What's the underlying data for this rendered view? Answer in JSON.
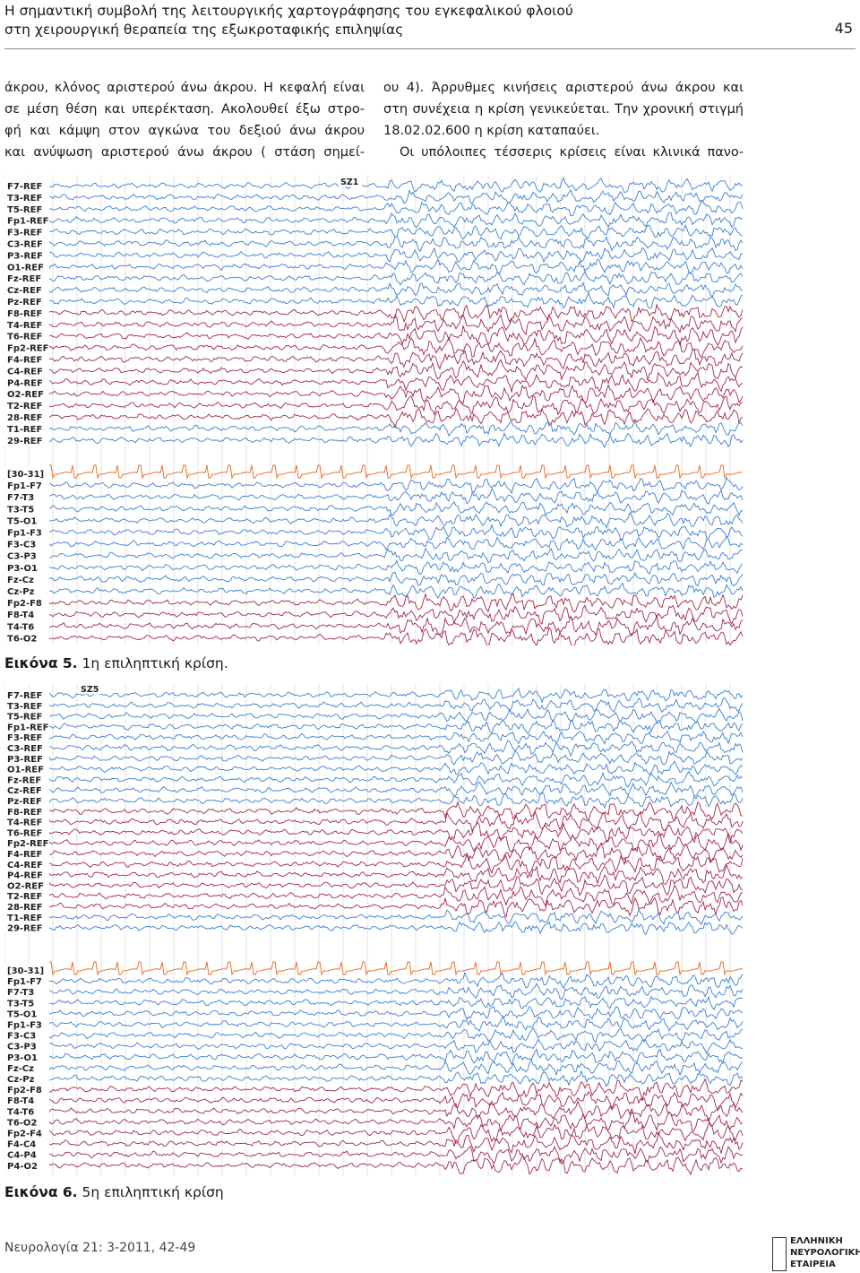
{
  "header": {
    "title_lines": [
      "Η σημαντική συμβολή της λειτουργικής χαρτογράφησης του εγκεφαλικού φλοιού",
      "στη χειρουργική θεραπεία της εξωκροταφικής επιληψίας"
    ],
    "page_number": "45"
  },
  "body": {
    "left_column": [
      "άκρου, κλόνος αριστερού άνω άκρου. Η κεφαλή είναι",
      "σε μέση θέση και υπερέκταση. Ακολουθεί έξω στρο-",
      "φή και κάμψη στον αγκώνα του δεξιού άνω άκρου",
      "και ανύψωση αριστερού άνω άκρου ( στάση σημεί-"
    ],
    "right_column": [
      "ου 4). Άρρυθμες κινήσεις αριστερού άνω άκρου και",
      "στη συνέχεια η κρίση γενικεύεται. Την χρονική στιγμή",
      "18.02.02.600 η κρίση  καταπαύει.",
      "Οι υπόλοιπες τέσσερις κρίσεις είναι κλινικά πανο-"
    ]
  },
  "figures": [
    {
      "marker": "SZ1",
      "channels": [
        "F7-REF",
        "T3-REF",
        "T5-REF",
        "Fp1-REF",
        "F3-REF",
        "C3-REF",
        "P3-REF",
        "O1-REF",
        "Fz-REF",
        "Cz-REF",
        "Pz-REF",
        "F8-REF",
        "T4-REF",
        "T6-REF",
        "Fp2-REF",
        "F4-REF",
        "C4-REF",
        "P4-REF",
        "O2-REF",
        "T2-REF",
        "28-REF",
        "T1-REF",
        "29-REF",
        "[30-31]",
        "Fp1-F7",
        "F7-T3",
        "T3-T5",
        "T5-O1",
        "Fp1-F3",
        "F3-C3",
        "C3-P3",
        "P3-O1",
        "Fz-Cz",
        "Cz-Pz",
        "Fp2-F8",
        "F8-T4",
        "T4-T6",
        "T6-O2"
      ],
      "caption_label": "Εικόνα 5.",
      "caption_text": "1η επιληπτική κρίση."
    },
    {
      "marker": "SZ5",
      "channels": [
        "F7-REF",
        "T3-REF",
        "T5-REF",
        "Fp1-REF",
        "F3-REF",
        "C3-REF",
        "P3-REF",
        "O1-REF",
        "Fz-REF",
        "Cz-REF",
        "Pz-REF",
        "F8-REF",
        "T4-REF",
        "T6-REF",
        "Fp2-REF",
        "F4-REF",
        "C4-REF",
        "P4-REF",
        "O2-REF",
        "T2-REF",
        "28-REF",
        "T1-REF",
        "29-REF",
        "[30-31]",
        "Fp1-F7",
        "F7-T3",
        "T3-T5",
        "T5-O1",
        "Fp1-F3",
        "F3-C3",
        "C3-P3",
        "P3-O1",
        "Fz-Cz",
        "Cz-Pz",
        "Fp2-F8",
        "F8-T4",
        "T4-T6",
        "T6-O2",
        "Fp2-F4",
        "F4-C4",
        "C4-P4",
        "P4-O2"
      ],
      "caption_label": "Εικόνα 6.",
      "caption_text": "5η επιληπτική κρίση"
    }
  ],
  "footer": {
    "citation": "Νευρολογία 21: 3-2011, 42-49",
    "logo_lines": [
      "ΕΛΛΗΝΙΚΗ",
      "ΝΕΥΡΟΛΟΓΙΚΗ",
      "ΕΤΑΙΡΕΙΑ"
    ]
  }
}
